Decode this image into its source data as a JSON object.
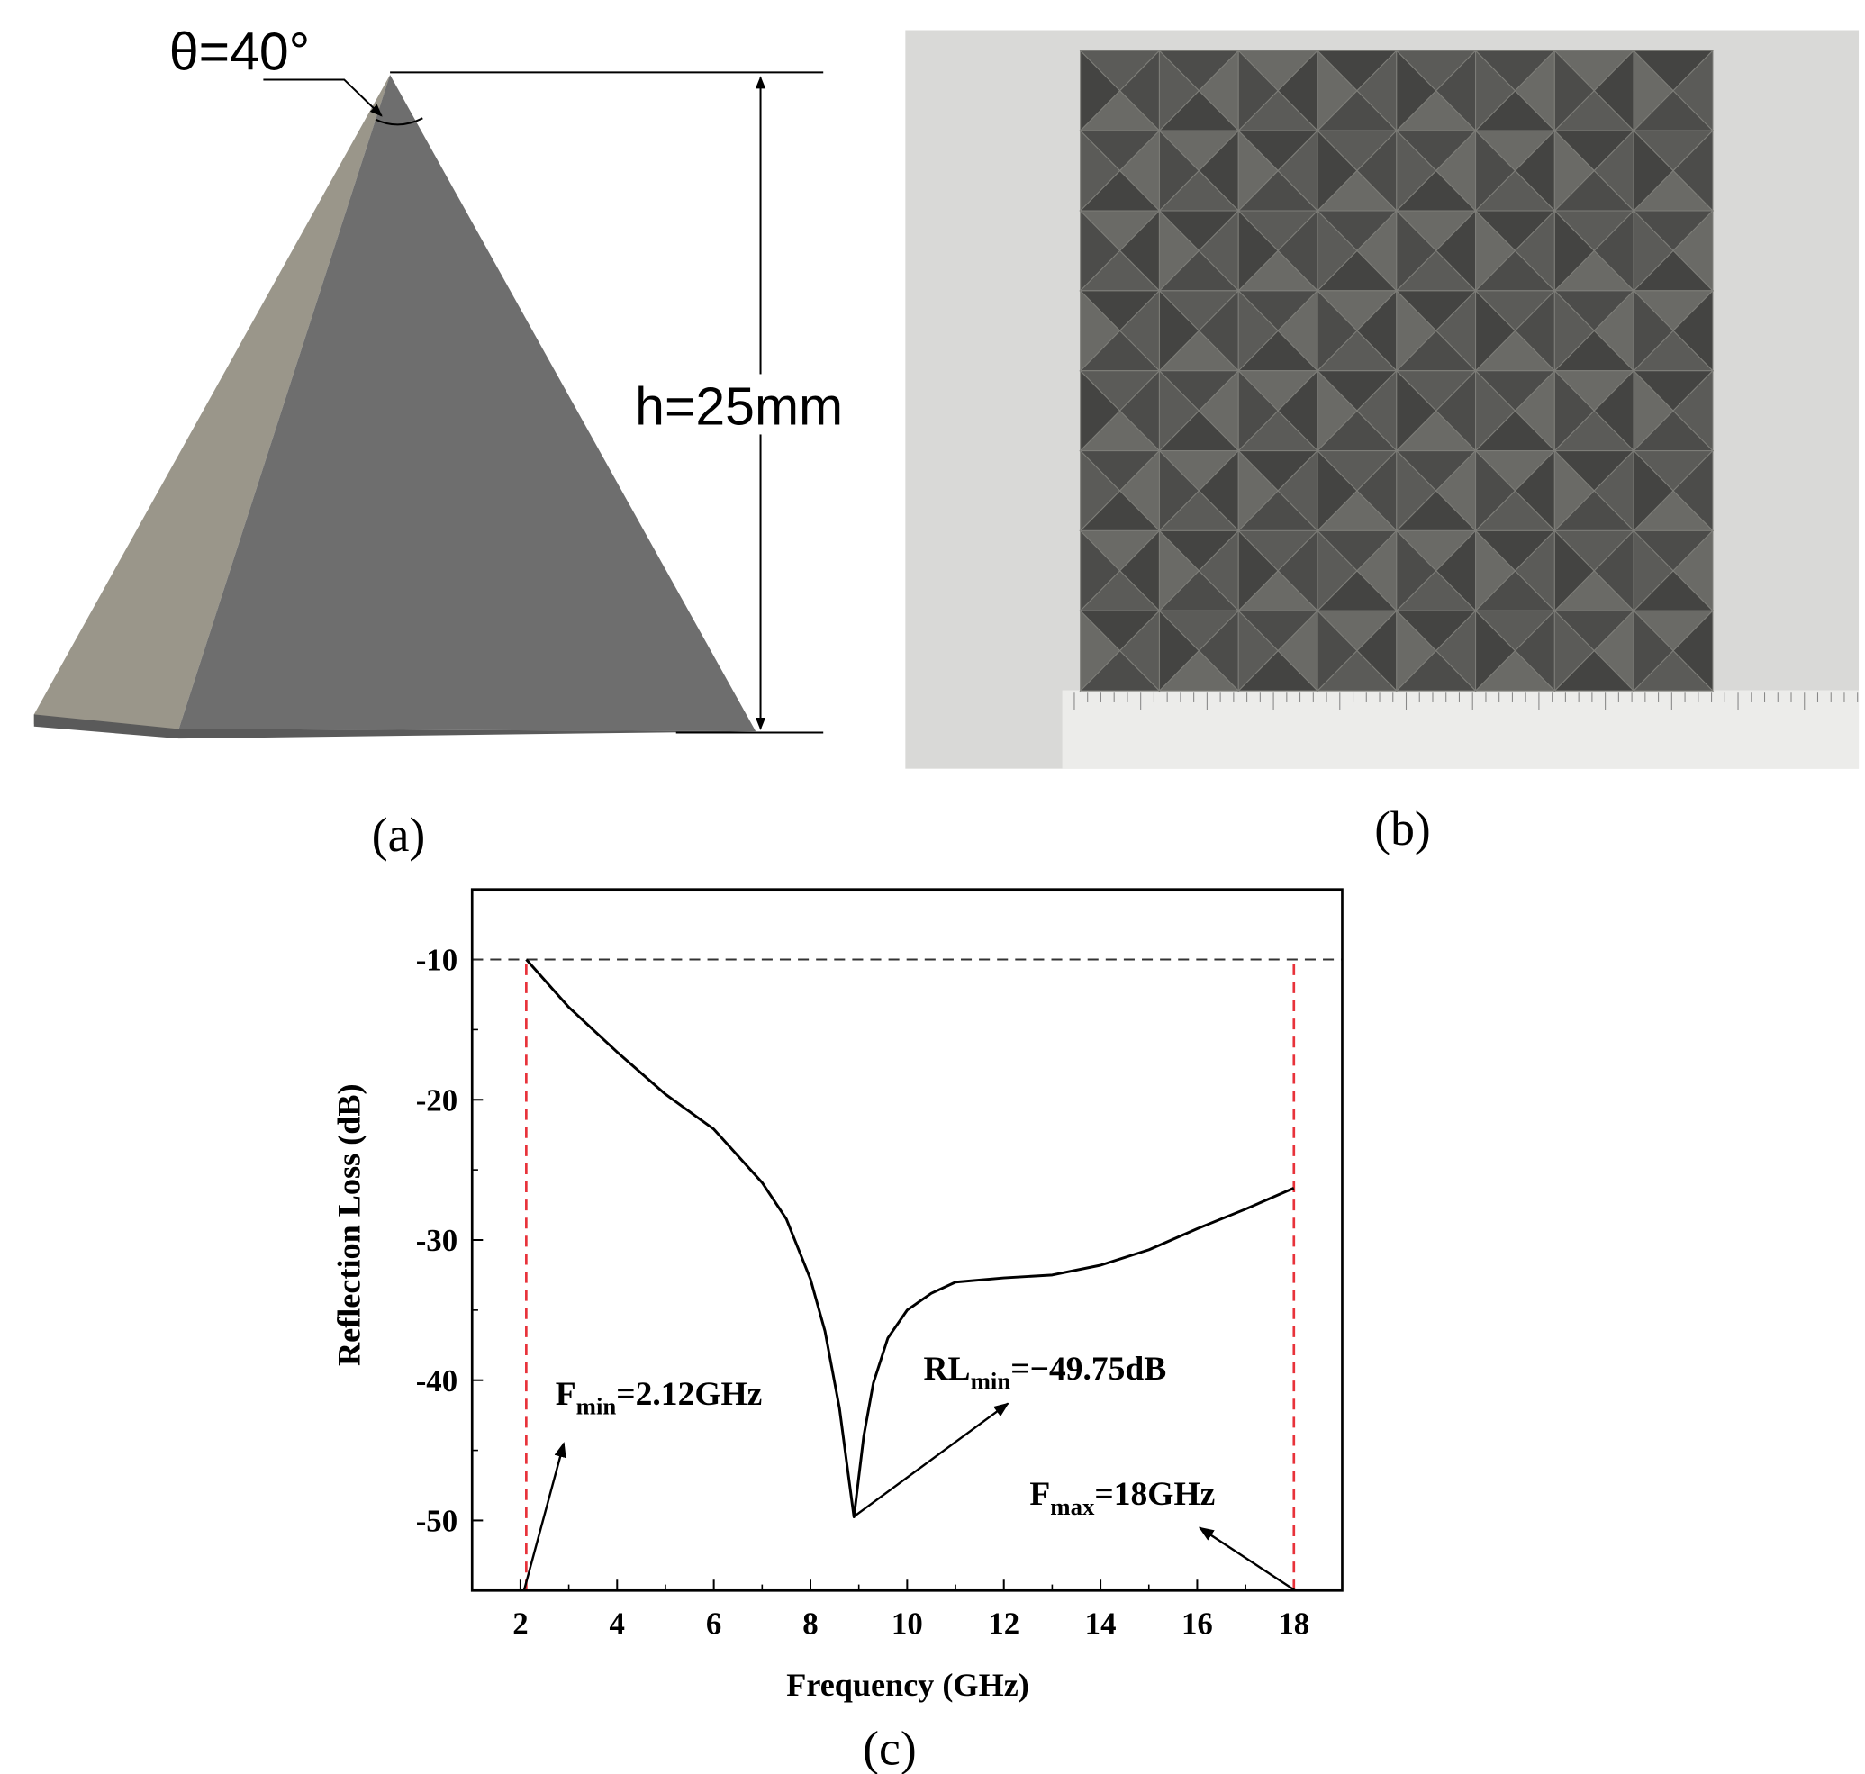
{
  "panel_a": {
    "label": "(a)",
    "angle": "θ=40°",
    "height": "h=25mm"
  },
  "panel_b": {
    "label": "(b)"
  },
  "chart_data": {
    "type": "line",
    "panel_label": "(c)",
    "x_label": "Frequency (GHz)",
    "y_label": "Reflection Loss (dB)",
    "x": [
      2.12,
      3,
      4,
      5,
      6,
      7,
      7.5,
      8,
      8.3,
      8.6,
      8.9,
      9.1,
      9.3,
      9.6,
      10,
      10.5,
      11,
      12,
      13,
      14,
      15,
      16,
      17,
      18
    ],
    "series": [
      {
        "color": "#000000",
        "values": [
          -10,
          -13.4,
          -16.6,
          -19.6,
          -22.1,
          -25.9,
          -28.5,
          -32.8,
          -36.5,
          -42,
          -49.75,
          -44,
          -40.2,
          -37,
          -35,
          -33.8,
          -33,
          -32.7,
          -32.5,
          -31.8,
          -30.7,
          -29.2,
          -27.8,
          -26.3
        ]
      }
    ],
    "xlim": [
      1,
      19
    ],
    "ylim": [
      -55,
      -5
    ],
    "xticks": [
      2,
      4,
      6,
      8,
      10,
      12,
      14,
      16,
      18
    ],
    "yticks": [
      -10,
      -20,
      -30,
      -40,
      -50
    ],
    "reference_lines": {
      "y": -10,
      "x": [
        2.12,
        18
      ]
    },
    "annotations": [
      {
        "main": "F",
        "sub": "min",
        "rest": "=2.12GHz"
      },
      {
        "main": "RL",
        "sub": "min",
        "rest": "=−49.75dB"
      },
      {
        "main": "F",
        "sub": "max",
        "rest": "=18GHz"
      }
    ]
  }
}
